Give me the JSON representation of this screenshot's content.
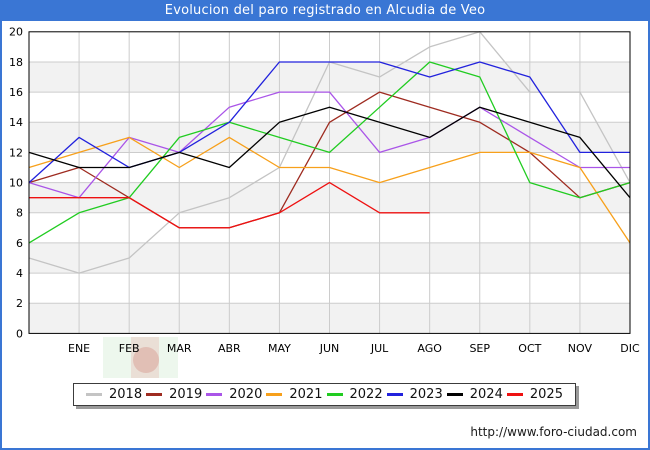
{
  "title_bar": {
    "title": "Evolucion del paro registrado en Alcudia de Veo"
  },
  "footer": {
    "url": "http://www.foro-ciudad.com"
  },
  "chart_data": {
    "type": "line",
    "title": "Evolucion del paro registrado en Alcudia de Veo",
    "xlabel": "",
    "ylabel": "",
    "ylim": [
      0,
      20
    ],
    "y_ticks": [
      0,
      2,
      4,
      6,
      8,
      10,
      12,
      14,
      16,
      18,
      20
    ],
    "x_labels": [
      "ENE",
      "FEB",
      "MAR",
      "ABR",
      "MAY",
      "JUN",
      "JUL",
      "AGO",
      "SEP",
      "OCT",
      "NOV",
      "DIC"
    ],
    "x_axis_note": "13 points per series: first value sits on the left axis edge, the remaining 12 on the month gridlines",
    "grid": true,
    "alternating_bands": true,
    "legend_position": "bottom",
    "series": [
      {
        "name": "2018",
        "color": "#c4c4c4",
        "values": [
          5,
          4,
          5,
          8,
          9,
          11,
          18,
          17,
          19,
          20,
          16,
          16,
          10
        ]
      },
      {
        "name": "2019",
        "color": "#9e2b20",
        "values": [
          10,
          11,
          9,
          7,
          7,
          8,
          14,
          16,
          15,
          14,
          12,
          9,
          10
        ]
      },
      {
        "name": "2020",
        "color": "#aa55e8",
        "values": [
          10,
          9,
          13,
          12,
          15,
          16,
          16,
          12,
          13,
          15,
          13,
          11,
          11
        ]
      },
      {
        "name": "2021",
        "color": "#f7a01b",
        "values": [
          11,
          12,
          13,
          11,
          13,
          11,
          11,
          10,
          11,
          12,
          12,
          11,
          6
        ]
      },
      {
        "name": "2022",
        "color": "#21cc21",
        "values": [
          6,
          8,
          9,
          13,
          14,
          13,
          12,
          15,
          18,
          17,
          10,
          9,
          10
        ]
      },
      {
        "name": "2023",
        "color": "#2222dd",
        "values": [
          10,
          13,
          11,
          12,
          14,
          18,
          18,
          18,
          17,
          18,
          17,
          12,
          12
        ]
      },
      {
        "name": "2024",
        "color": "#000000",
        "values": [
          12,
          11,
          11,
          12,
          11,
          14,
          15,
          14,
          13,
          15,
          14,
          13,
          9
        ]
      },
      {
        "name": "2025",
        "color": "#ee1111",
        "values": [
          9,
          9,
          9,
          7,
          7,
          8,
          10,
          8,
          8,
          null,
          null,
          null,
          null
        ]
      }
    ]
  }
}
